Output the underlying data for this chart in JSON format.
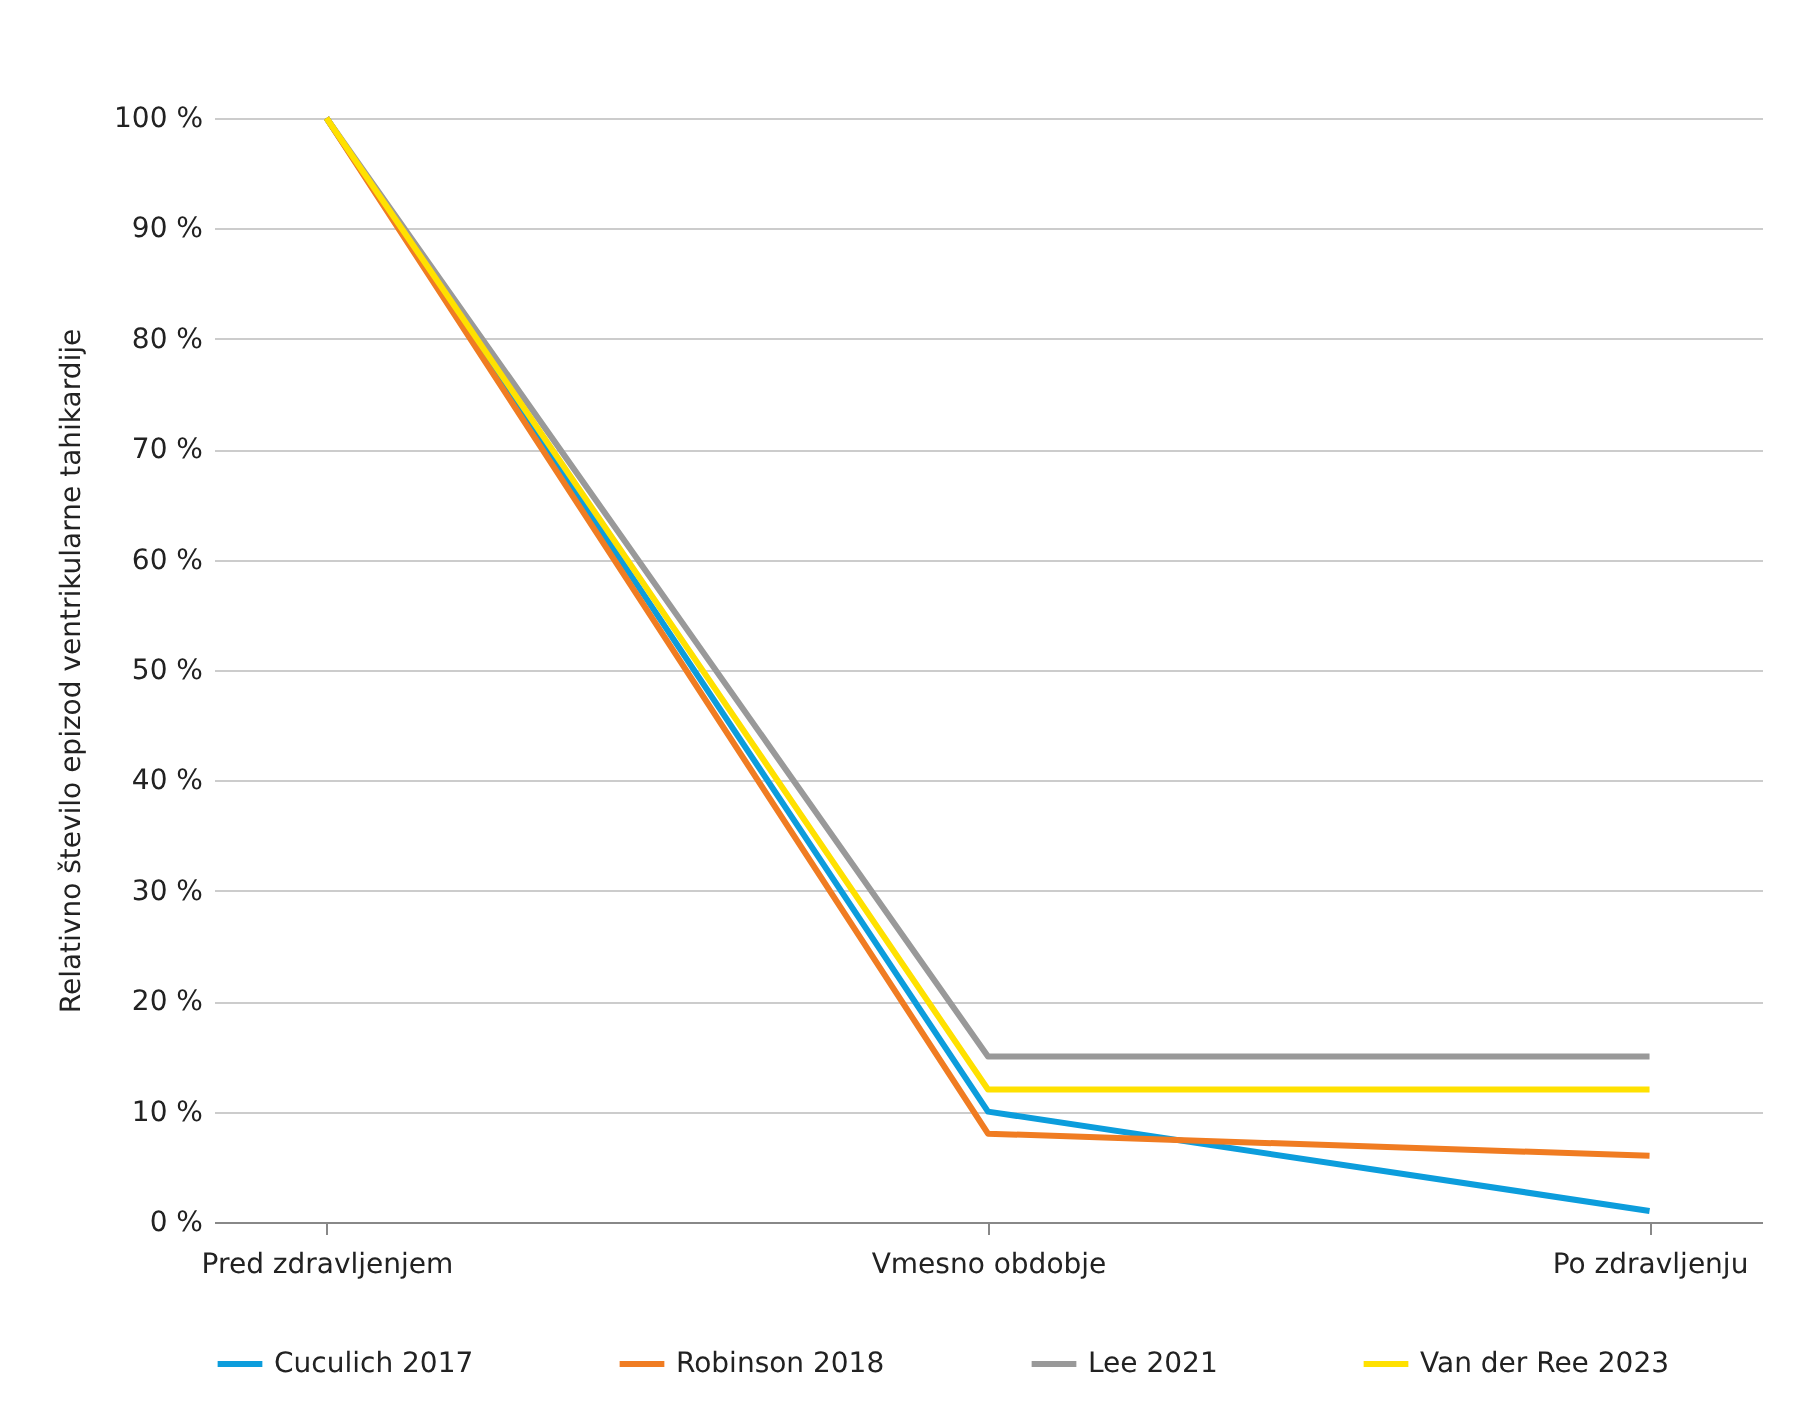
{
  "chart_data": {
    "type": "line",
    "ylabel": "Relativno število epizod ventrikularne  tahikardije",
    "categories": [
      "Pred zdravljenjem",
      "Vmesno obdobje",
      "Po zdravljenju"
    ],
    "series": [
      {
        "name": "Cuculich 2017",
        "color": "#0c9ddc",
        "values": [
          100,
          10,
          1
        ]
      },
      {
        "name": "Robinson 2018",
        "color": "#f07c22",
        "values": [
          100,
          8,
          6
        ]
      },
      {
        "name": "Lee 2021",
        "color": "#999999",
        "values": [
          100,
          15,
          15
        ]
      },
      {
        "name": "Van der Ree 2023",
        "color": "#ffe100",
        "values": [
          100,
          12,
          12
        ]
      }
    ],
    "ylim": [
      0,
      100
    ],
    "yticks": [
      {
        "value": 0,
        "label": "0 %"
      },
      {
        "value": 10,
        "label": "10 %"
      },
      {
        "value": 20,
        "label": "20 %"
      },
      {
        "value": 30,
        "label": "30 %"
      },
      {
        "value": 40,
        "label": "40 %"
      },
      {
        "value": 50,
        "label": "50 %"
      },
      {
        "value": 60,
        "label": "60 %"
      },
      {
        "value": 70,
        "label": "70 %"
      },
      {
        "value": 80,
        "label": "80 %"
      },
      {
        "value": 90,
        "label": "90 %"
      },
      {
        "value": 100,
        "label": "100 %"
      }
    ],
    "grid": "y",
    "legend": "bottom",
    "marker": "none",
    "line_style": "solid"
  }
}
